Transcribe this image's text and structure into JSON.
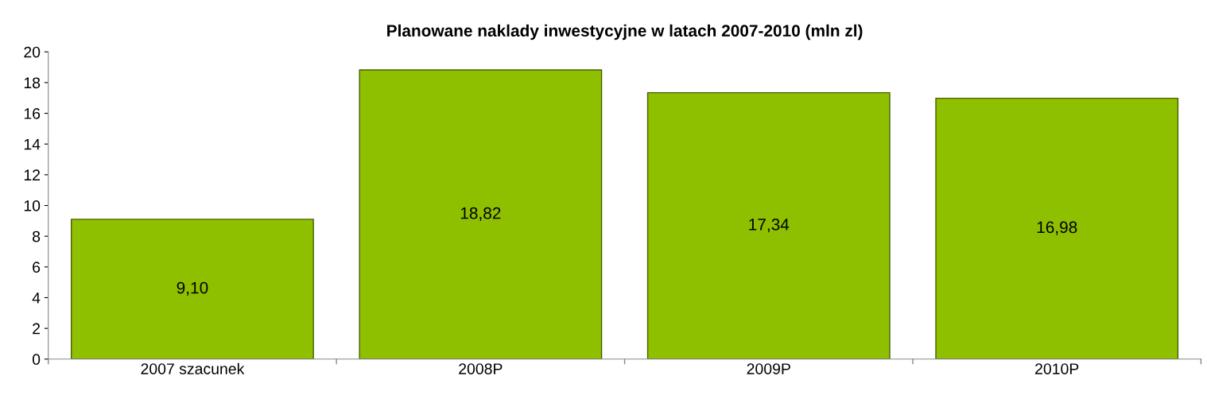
{
  "chart_data": {
    "type": "bar",
    "title": "Planowane naklady inwestycyjne w latach 2007-2010 (mln zl)",
    "categories": [
      "2007 szacunek",
      "2008P",
      "2009P",
      "2010P"
    ],
    "values": [
      9.1,
      18.82,
      17.34,
      16.98
    ],
    "value_labels": [
      "9,10",
      "18,82",
      "17,34",
      "16,98"
    ],
    "color": "#8fc000",
    "ylim": [
      0,
      20
    ],
    "yticks": [
      0,
      2,
      4,
      6,
      8,
      10,
      12,
      14,
      16,
      18,
      20
    ],
    "grid": false
  }
}
